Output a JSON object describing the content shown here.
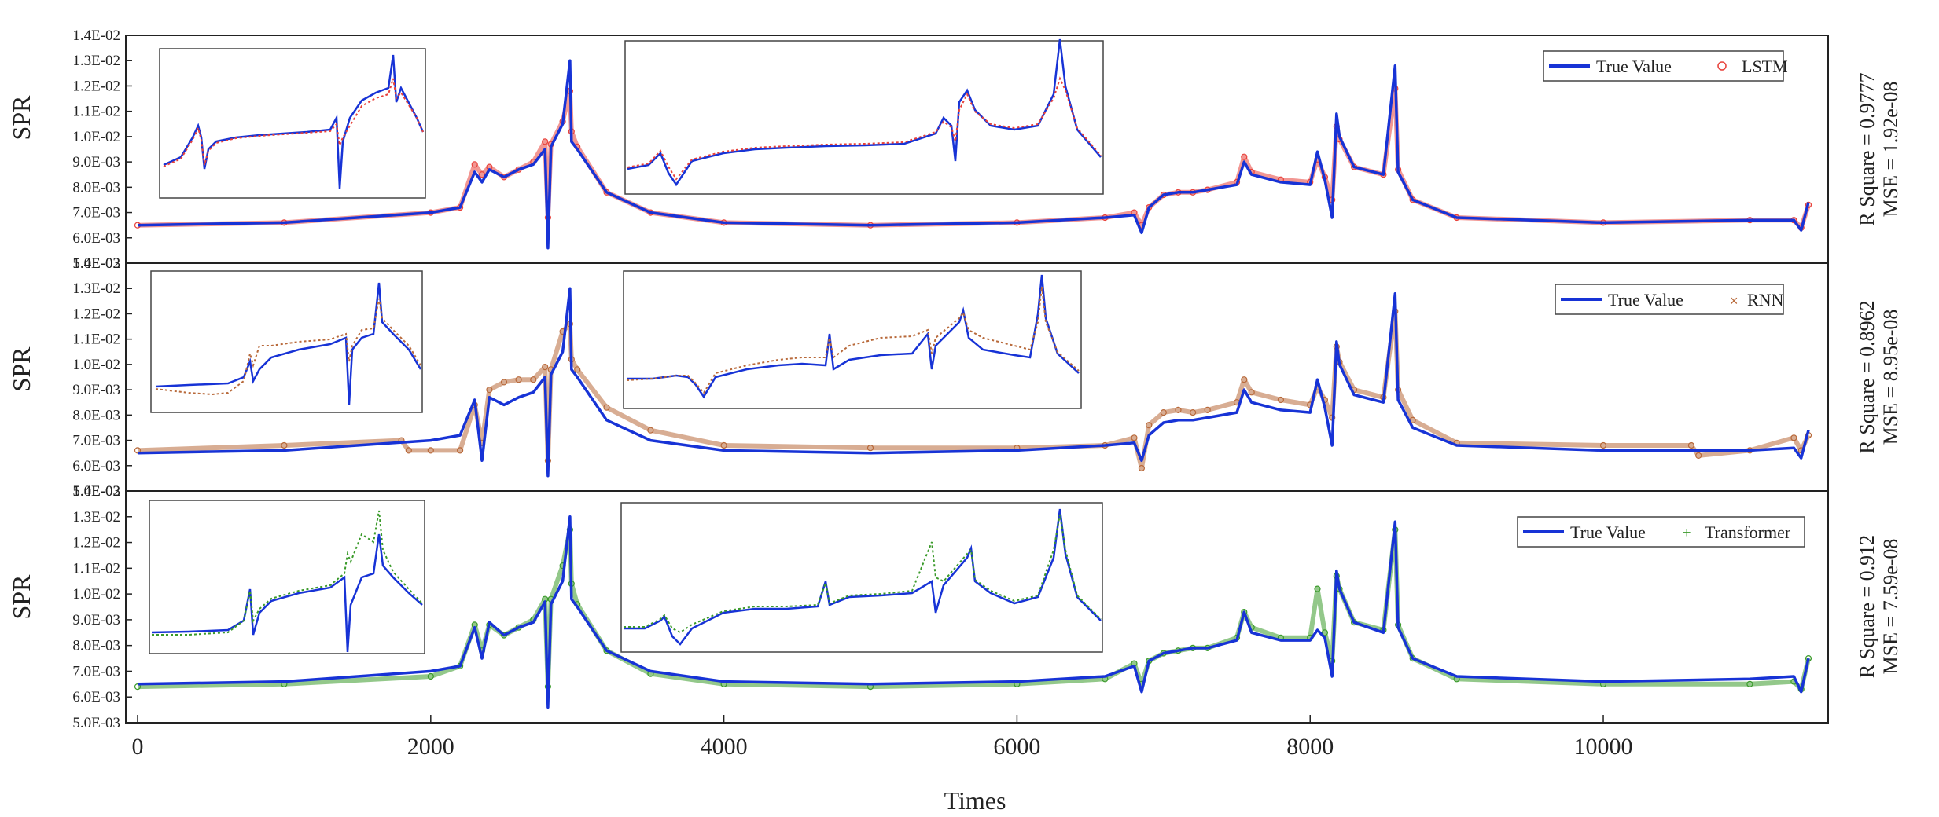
{
  "chart_data": [
    {
      "type": "line",
      "ylabel": "SPR",
      "xlabel": "Times",
      "xlim": [
        0,
        11400
      ],
      "ylim": [
        0.005,
        0.014
      ],
      "yticks": [
        "5.0E-03",
        "6.0E-03",
        "7.0E-03",
        "8.0E-03",
        "9.0E-03",
        "1.0E-02",
        "1.1E-02",
        "1.2E-02",
        "1.3E-02",
        "1.4E-02"
      ],
      "legend_position": "top-right",
      "annotations": [
        "R Square = 0.9777",
        "MSE = 1.92e-08"
      ],
      "series": [
        {
          "name": "True Value",
          "color": "#1733d6",
          "style": "line",
          "x": [
            0,
            1000,
            2000,
            2200,
            2300,
            2350,
            2400,
            2500,
            2600,
            2700,
            2780,
            2800,
            2820,
            2900,
            2950,
            2960,
            3000,
            3200,
            3500,
            4000,
            5000,
            6000,
            6600,
            6800,
            6850,
            6900,
            7000,
            7100,
            7200,
            7300,
            7500,
            7550,
            7600,
            7800,
            8000,
            8050,
            8100,
            8150,
            8180,
            8200,
            8300,
            8500,
            8580,
            8600,
            8700,
            9000,
            10000,
            11000,
            11300,
            11350,
            11400
          ],
          "y": [
            0.0065,
            0.0066,
            0.007,
            0.0072,
            0.0086,
            0.0082,
            0.0087,
            0.0084,
            0.0087,
            0.0089,
            0.0095,
            0.0056,
            0.0096,
            0.0105,
            0.013,
            0.0098,
            0.0095,
            0.0078,
            0.007,
            0.0066,
            0.0065,
            0.0066,
            0.0068,
            0.0069,
            0.0062,
            0.0072,
            0.0077,
            0.0078,
            0.0078,
            0.0079,
            0.0081,
            0.009,
            0.0085,
            0.0082,
            0.0081,
            0.0094,
            0.0083,
            0.0068,
            0.0109,
            0.01,
            0.0088,
            0.0085,
            0.0128,
            0.0086,
            0.0075,
            0.0068,
            0.0066,
            0.0067,
            0.0067,
            0.0063,
            0.0074
          ]
        },
        {
          "name": "LSTM",
          "color": "#e8413a",
          "style": "markers",
          "x": [
            0,
            1000,
            2000,
            2200,
            2300,
            2350,
            2400,
            2500,
            2600,
            2700,
            2780,
            2800,
            2820,
            2900,
            2950,
            2960,
            3000,
            3200,
            3500,
            4000,
            5000,
            6000,
            6600,
            6800,
            6850,
            6900,
            7000,
            7100,
            7200,
            7300,
            7500,
            7550,
            7600,
            7800,
            8000,
            8050,
            8100,
            8150,
            8180,
            8200,
            8300,
            8500,
            8580,
            8600,
            8700,
            9000,
            10000,
            11000,
            11300,
            11350,
            11400
          ],
          "y": [
            0.0065,
            0.0066,
            0.007,
            0.0072,
            0.0089,
            0.0085,
            0.0088,
            0.0084,
            0.0087,
            0.009,
            0.0098,
            0.0068,
            0.0097,
            0.0106,
            0.0118,
            0.0102,
            0.0096,
            0.0078,
            0.007,
            0.0066,
            0.0065,
            0.0066,
            0.0068,
            0.007,
            0.0065,
            0.0072,
            0.0077,
            0.0078,
            0.0078,
            0.0079,
            0.0082,
            0.0092,
            0.0086,
            0.0083,
            0.0082,
            0.0091,
            0.0084,
            0.0075,
            0.0104,
            0.0099,
            0.0088,
            0.0085,
            0.0119,
            0.0087,
            0.0075,
            0.0068,
            0.0066,
            0.0067,
            0.0067,
            0.0064,
            0.0073
          ]
        }
      ]
    },
    {
      "type": "line",
      "ylabel": "SPR",
      "xlabel": "Times",
      "xlim": [
        0,
        11400
      ],
      "ylim": [
        0.005,
        0.014
      ],
      "yticks": [
        "5.0E-03",
        "6.0E-03",
        "7.0E-03",
        "8.0E-03",
        "9.0E-03",
        "1.0E-02",
        "1.1E-02",
        "1.2E-02",
        "1.3E-02",
        "1.4E-02"
      ],
      "legend_position": "top-right",
      "annotations": [
        "R Square = 0.8962",
        "MSE = 8.95e-08"
      ],
      "series": [
        {
          "name": "True Value",
          "color": "#1733d6",
          "style": "line",
          "x": [
            0,
            1000,
            2000,
            2200,
            2300,
            2350,
            2400,
            2500,
            2600,
            2700,
            2780,
            2800,
            2820,
            2900,
            2950,
            2960,
            3000,
            3200,
            3500,
            4000,
            5000,
            6000,
            6600,
            6800,
            6850,
            6900,
            7000,
            7100,
            7200,
            7300,
            7500,
            7550,
            7600,
            7800,
            8000,
            8050,
            8100,
            8150,
            8180,
            8200,
            8300,
            8500,
            8580,
            8600,
            8700,
            9000,
            10000,
            11000,
            11300,
            11350,
            11400
          ],
          "y": [
            0.0065,
            0.0066,
            0.007,
            0.0072,
            0.0086,
            0.0062,
            0.0087,
            0.0084,
            0.0087,
            0.0089,
            0.0095,
            0.0056,
            0.0096,
            0.0105,
            0.013,
            0.0098,
            0.0095,
            0.0078,
            0.007,
            0.0066,
            0.0065,
            0.0066,
            0.0068,
            0.0069,
            0.0062,
            0.0072,
            0.0077,
            0.0078,
            0.0078,
            0.0079,
            0.0081,
            0.009,
            0.0085,
            0.0082,
            0.0081,
            0.0094,
            0.0083,
            0.0068,
            0.0109,
            0.01,
            0.0088,
            0.0085,
            0.0128,
            0.0086,
            0.0075,
            0.0068,
            0.0066,
            0.0066,
            0.0067,
            0.0063,
            0.0074
          ]
        },
        {
          "name": "RNN",
          "color": "#b8693a",
          "style": "markers",
          "x": [
            0,
            1000,
            1800,
            1850,
            2000,
            2200,
            2300,
            2350,
            2400,
            2500,
            2600,
            2700,
            2780,
            2800,
            2820,
            2900,
            2950,
            2960,
            3000,
            3200,
            3500,
            4000,
            5000,
            6000,
            6600,
            6800,
            6850,
            6900,
            7000,
            7100,
            7200,
            7300,
            7500,
            7550,
            7600,
            7800,
            8000,
            8050,
            8100,
            8150,
            8180,
            8200,
            8300,
            8500,
            8580,
            8600,
            8700,
            9000,
            10000,
            10600,
            10650,
            11000,
            11300,
            11350,
            11400
          ],
          "y": [
            0.0066,
            0.0068,
            0.007,
            0.0066,
            0.0066,
            0.0066,
            0.0084,
            0.0069,
            0.009,
            0.0093,
            0.0094,
            0.0094,
            0.0099,
            0.0062,
            0.0098,
            0.0113,
            0.0116,
            0.0102,
            0.0098,
            0.0083,
            0.0074,
            0.0068,
            0.0067,
            0.0067,
            0.0068,
            0.0071,
            0.0059,
            0.0076,
            0.0081,
            0.0082,
            0.0081,
            0.0082,
            0.0085,
            0.0094,
            0.0089,
            0.0086,
            0.0084,
            0.0091,
            0.0086,
            0.0079,
            0.0107,
            0.0101,
            0.009,
            0.0087,
            0.0121,
            0.009,
            0.0078,
            0.0069,
            0.0068,
            0.0068,
            0.0064,
            0.0066,
            0.0071,
            0.0066,
            0.0072
          ]
        }
      ]
    },
    {
      "type": "line",
      "ylabel": "SPR",
      "xlabel": "Times",
      "xlim": [
        0,
        11400
      ],
      "ylim": [
        0.005,
        0.014
      ],
      "yticks": [
        "5.0E-03",
        "6.0E-03",
        "7.0E-03",
        "8.0E-03",
        "9.0E-03",
        "1.0E-02",
        "1.1E-02",
        "1.2E-02",
        "1.3E-02",
        "1.4E-02"
      ],
      "xticks": [
        "0",
        "2000",
        "4000",
        "6000",
        "8000",
        "10000"
      ],
      "legend_position": "top-right",
      "annotations": [
        "R Square = 0.912",
        "MSE = 7.59e-08"
      ],
      "series": [
        {
          "name": "True Value",
          "color": "#1733d6",
          "style": "line",
          "x": [
            0,
            1000,
            2000,
            2200,
            2300,
            2350,
            2400,
            2500,
            2600,
            2700,
            2780,
            2800,
            2820,
            2900,
            2950,
            2960,
            3000,
            3200,
            3500,
            4000,
            5000,
            6000,
            6600,
            6800,
            6850,
            6900,
            7000,
            7100,
            7200,
            7300,
            7500,
            7550,
            7600,
            7800,
            8000,
            8050,
            8100,
            8150,
            8180,
            8200,
            8300,
            8500,
            8580,
            8600,
            8700,
            9000,
            10000,
            11000,
            11300,
            11350,
            11400
          ],
          "y": [
            0.0065,
            0.0066,
            0.007,
            0.0072,
            0.0087,
            0.0075,
            0.0089,
            0.0084,
            0.0087,
            0.0089,
            0.0097,
            0.0056,
            0.0096,
            0.0105,
            0.013,
            0.0098,
            0.0095,
            0.0078,
            0.007,
            0.0066,
            0.0065,
            0.0066,
            0.0068,
            0.0072,
            0.0062,
            0.0074,
            0.0077,
            0.0078,
            0.0079,
            0.0079,
            0.0082,
            0.0093,
            0.0085,
            0.0082,
            0.0082,
            0.0086,
            0.0083,
            0.0068,
            0.0109,
            0.0102,
            0.0089,
            0.0085,
            0.0128,
            0.0087,
            0.0075,
            0.0068,
            0.0066,
            0.0067,
            0.0068,
            0.0062,
            0.0075
          ]
        },
        {
          "name": "Transformer",
          "color": "#3a9a2a",
          "style": "markers",
          "x": [
            0,
            1000,
            2000,
            2200,
            2300,
            2350,
            2400,
            2500,
            2600,
            2700,
            2780,
            2800,
            2820,
            2900,
            2950,
            2960,
            3000,
            3200,
            3500,
            4000,
            5000,
            6000,
            6600,
            6800,
            6850,
            6900,
            7000,
            7100,
            7200,
            7300,
            7500,
            7550,
            7600,
            7800,
            8000,
            8050,
            8100,
            8150,
            8180,
            8200,
            8300,
            8500,
            8580,
            8600,
            8700,
            9000,
            10000,
            11000,
            11300,
            11350,
            11400
          ],
          "y": [
            0.0064,
            0.0065,
            0.0068,
            0.0072,
            0.0088,
            0.0078,
            0.0088,
            0.0084,
            0.0087,
            0.009,
            0.0098,
            0.0064,
            0.0098,
            0.0111,
            0.0125,
            0.0104,
            0.0096,
            0.0078,
            0.0069,
            0.0065,
            0.0064,
            0.0065,
            0.0067,
            0.0073,
            0.0065,
            0.0074,
            0.0077,
            0.0078,
            0.0079,
            0.0079,
            0.0083,
            0.0093,
            0.0087,
            0.0083,
            0.0083,
            0.0102,
            0.0085,
            0.0074,
            0.0107,
            0.0102,
            0.0089,
            0.0086,
            0.0125,
            0.0088,
            0.0075,
            0.0067,
            0.0065,
            0.0065,
            0.0066,
            0.0063,
            0.0075
          ]
        }
      ]
    }
  ]
}
